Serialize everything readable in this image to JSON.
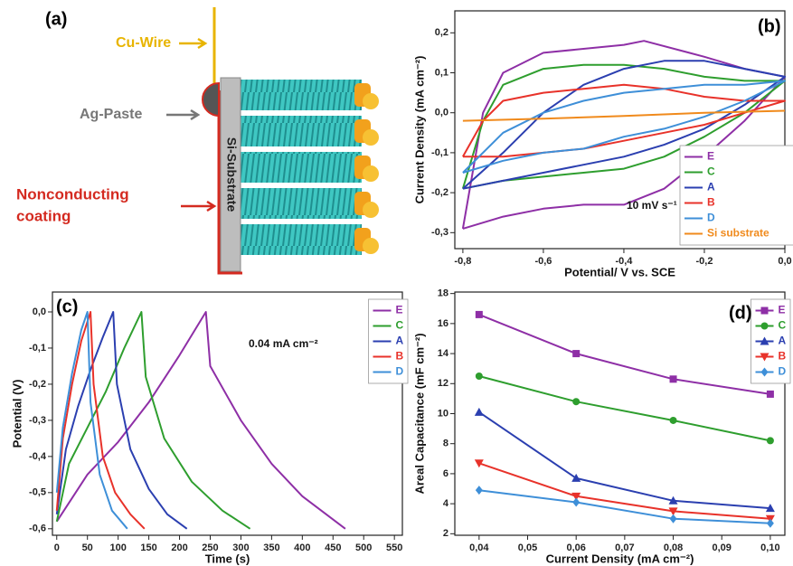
{
  "diagram": {
    "panel_label": "(a)",
    "cu_wire": "Cu-Wire",
    "ag_paste": "Ag-Paste",
    "substrate": "Si-Substrate",
    "coating_lines": [
      "Nonconducting",
      "coating"
    ]
  },
  "chart_data": [
    {
      "type": "line",
      "panel_label": "(b)",
      "x_label": "Potential/ V vs. SCE",
      "y_label": "Current Density (mA cm⁻²)",
      "annotation": "10 mV s⁻¹",
      "xlim": [
        -0.82,
        0.0
      ],
      "ylim": [
        -0.34,
        0.255
      ],
      "xticks": [
        {
          "value": -0.8,
          "label": "-0,8"
        },
        {
          "value": -0.6,
          "label": "-0,6"
        },
        {
          "value": -0.4,
          "label": "-0,4"
        },
        {
          "value": -0.2,
          "label": "-0,2"
        },
        {
          "value": 0.0,
          "label": "0,0"
        }
      ],
      "yticks": [
        {
          "value": -0.3,
          "label": "-0,3"
        },
        {
          "value": -0.2,
          "label": "-0,2"
        },
        {
          "value": -0.1,
          "label": "-0,1"
        },
        {
          "value": 0.0,
          "label": "0,0"
        },
        {
          "value": 0.1,
          "label": "0,1"
        },
        {
          "value": 0.2,
          "label": "0,2"
        }
      ],
      "legend": "lower right",
      "series": [
        {
          "name": "E",
          "color": "#8e2fa6",
          "x": [
            -0.8,
            -0.75,
            -0.7,
            -0.6,
            -0.4,
            -0.35,
            -0.2,
            -0.1,
            0.0,
            -0.1,
            -0.2,
            -0.3,
            -0.4,
            -0.5,
            -0.6,
            -0.7,
            -0.8
          ],
          "values": [
            -0.29,
            0.0,
            0.1,
            0.15,
            0.17,
            0.18,
            0.14,
            0.11,
            0.09,
            -0.02,
            -0.11,
            -0.19,
            -0.23,
            -0.23,
            -0.24,
            -0.26,
            -0.29
          ]
        },
        {
          "name": "C",
          "color": "#2e9e2e",
          "x": [
            -0.8,
            -0.75,
            -0.7,
            -0.6,
            -0.5,
            -0.4,
            -0.3,
            -0.2,
            -0.1,
            0.0,
            -0.1,
            -0.2,
            -0.3,
            -0.4,
            -0.5,
            -0.6,
            -0.7,
            -0.8
          ],
          "values": [
            -0.19,
            -0.02,
            0.07,
            0.11,
            0.12,
            0.12,
            0.11,
            0.09,
            0.08,
            0.08,
            0.0,
            -0.06,
            -0.11,
            -0.14,
            -0.15,
            -0.16,
            -0.17,
            -0.19
          ]
        },
        {
          "name": "A",
          "color": "#2b3fb0",
          "x": [
            -0.8,
            -0.7,
            -0.6,
            -0.5,
            -0.4,
            -0.3,
            -0.2,
            -0.1,
            0.0,
            -0.1,
            -0.2,
            -0.3,
            -0.4,
            -0.5,
            -0.6,
            -0.7,
            -0.8
          ],
          "values": [
            -0.19,
            -0.1,
            0.0,
            0.07,
            0.11,
            0.13,
            0.13,
            0.11,
            0.09,
            0.02,
            -0.04,
            -0.08,
            -0.11,
            -0.13,
            -0.15,
            -0.17,
            -0.19
          ]
        },
        {
          "name": "B",
          "color": "#e8322a",
          "x": [
            -0.8,
            -0.75,
            -0.7,
            -0.6,
            -0.5,
            -0.4,
            -0.3,
            -0.2,
            -0.1,
            0.0,
            -0.1,
            -0.2,
            -0.3,
            -0.4,
            -0.5,
            -0.6,
            -0.7,
            -0.8
          ],
          "values": [
            -0.11,
            -0.02,
            0.03,
            0.05,
            0.06,
            0.07,
            0.06,
            0.04,
            0.03,
            0.03,
            0.0,
            -0.03,
            -0.05,
            -0.07,
            -0.09,
            -0.1,
            -0.11,
            -0.11
          ]
        },
        {
          "name": "D",
          "color": "#3e8fd8",
          "x": [
            -0.8,
            -0.7,
            -0.6,
            -0.5,
            -0.4,
            -0.3,
            -0.2,
            -0.1,
            0.0,
            -0.1,
            -0.2,
            -0.3,
            -0.4,
            -0.5,
            -0.6,
            -0.7,
            -0.8
          ],
          "values": [
            -0.15,
            -0.05,
            0.0,
            0.03,
            0.05,
            0.06,
            0.07,
            0.07,
            0.08,
            0.03,
            -0.01,
            -0.04,
            -0.06,
            -0.09,
            -0.1,
            -0.12,
            -0.15
          ]
        },
        {
          "name": "Si substrate",
          "color": "#f08a1c",
          "x": [
            -0.8,
            -0.6,
            -0.4,
            -0.2,
            0.0
          ],
          "values": [
            -0.02,
            -0.015,
            -0.008,
            0.0,
            0.005
          ]
        }
      ]
    },
    {
      "type": "line",
      "panel_label": "(c)",
      "x_label": "Time (s)",
      "y_label": "Potential (V)",
      "annotation": "0.04 mA cm⁻²",
      "xlim": [
        -7,
        563
      ],
      "ylim": [
        -0.618,
        0.055
      ],
      "xticks": [
        0,
        50,
        100,
        150,
        200,
        250,
        300,
        350,
        400,
        450,
        500,
        550
      ],
      "yticks": [
        {
          "value": -0.6,
          "label": "-0,6"
        },
        {
          "value": -0.5,
          "label": "-0,5"
        },
        {
          "value": -0.4,
          "label": "-0,4"
        },
        {
          "value": -0.3,
          "label": "-0,3"
        },
        {
          "value": -0.2,
          "label": "-0,2"
        },
        {
          "value": -0.1,
          "label": "-0,1"
        },
        {
          "value": 0.0,
          "label": "0,0"
        }
      ],
      "legend": "upper right",
      "series": [
        {
          "name": "E",
          "color": "#8e2fa6",
          "x": [
            0,
            50,
            100,
            150,
            200,
            243,
            250,
            300,
            350,
            400,
            470
          ],
          "values": [
            -0.58,
            -0.45,
            -0.36,
            -0.25,
            -0.12,
            0.0,
            -0.15,
            -0.3,
            -0.42,
            -0.51,
            -0.6
          ]
        },
        {
          "name": "C",
          "color": "#2e9e2e",
          "x": [
            0,
            20,
            50,
            80,
            110,
            138,
            145,
            175,
            220,
            270,
            315
          ],
          "values": [
            -0.58,
            -0.42,
            -0.32,
            -0.22,
            -0.1,
            0.0,
            -0.18,
            -0.35,
            -0.47,
            -0.55,
            -0.6
          ]
        },
        {
          "name": "A",
          "color": "#2b3fb0",
          "x": [
            0,
            15,
            35,
            55,
            75,
            92,
            98,
            120,
            150,
            180,
            212
          ],
          "values": [
            -0.56,
            -0.38,
            -0.26,
            -0.16,
            -0.07,
            0.0,
            -0.2,
            -0.38,
            -0.49,
            -0.56,
            -0.6
          ]
        },
        {
          "name": "B",
          "color": "#e8322a",
          "x": [
            0,
            10,
            25,
            40,
            55,
            60,
            75,
            95,
            120,
            143
          ],
          "values": [
            -0.55,
            -0.35,
            -0.2,
            -0.08,
            0.0,
            -0.2,
            -0.4,
            -0.5,
            -0.56,
            -0.6
          ]
        },
        {
          "name": "D",
          "color": "#3e8fd8",
          "x": [
            0,
            10,
            25,
            40,
            50,
            55,
            70,
            90,
            115
          ],
          "values": [
            -0.5,
            -0.32,
            -0.17,
            -0.05,
            0.0,
            -0.25,
            -0.45,
            -0.55,
            -0.6
          ]
        }
      ]
    },
    {
      "type": "line",
      "panel_label": "(d)",
      "x_label": "Current Density (mA cm⁻²)",
      "y_label": "Areal Capacitance (mF cm⁻²)",
      "xlim": [
        0.035,
        0.103
      ],
      "ylim": [
        1.9,
        18.1
      ],
      "xticks": [
        {
          "value": 0.04,
          "label": "0,04"
        },
        {
          "value": 0.05,
          "label": "0,05"
        },
        {
          "value": 0.06,
          "label": "0,06"
        },
        {
          "value": 0.07,
          "label": "0,07"
        },
        {
          "value": 0.08,
          "label": "0,08"
        },
        {
          "value": 0.09,
          "label": "0,09"
        },
        {
          "value": 0.1,
          "label": "0,10"
        }
      ],
      "yticks": [
        2,
        4,
        6,
        8,
        10,
        12,
        14,
        16,
        18
      ],
      "legend": "upper right",
      "x": [
        0.04,
        0.06,
        0.08,
        0.1
      ],
      "series": [
        {
          "name": "E",
          "color": "#8e2fa6",
          "marker": "square",
          "values": [
            16.6,
            14.0,
            12.3,
            11.3
          ]
        },
        {
          "name": "C",
          "color": "#2e9e2e",
          "marker": "circle",
          "values": [
            12.5,
            10.8,
            9.55,
            8.2
          ]
        },
        {
          "name": "A",
          "color": "#2b3fb0",
          "marker": "triangle-up",
          "values": [
            10.1,
            5.7,
            4.2,
            3.7
          ]
        },
        {
          "name": "B",
          "color": "#e8322a",
          "marker": "triangle-down",
          "values": [
            6.7,
            4.5,
            3.5,
            3.0
          ]
        },
        {
          "name": "D",
          "color": "#3e8fd8",
          "marker": "diamond",
          "values": [
            4.9,
            4.1,
            3.0,
            2.7
          ]
        }
      ]
    }
  ]
}
